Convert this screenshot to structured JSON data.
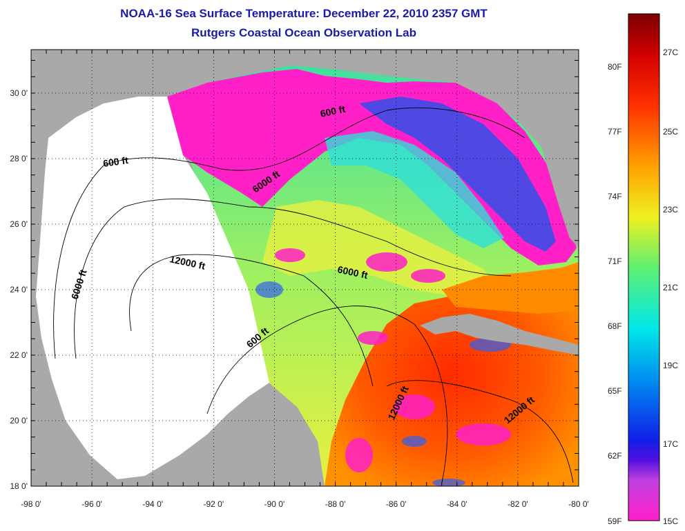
{
  "title": "NOAA-16 Sea Surface Temperature:  December 22, 2010 2357 GMT",
  "subtitle": "Rutgers Coastal Ocean Observation Lab",
  "map": {
    "lon_ticks": [
      "-98 0'",
      "-96 0'",
      "-94 0'",
      "-92 0'",
      "-90 0'",
      "-88 0'",
      "-86 0'",
      "-84 0'",
      "-82 0'",
      "-80 0'"
    ],
    "lat_ticks": [
      "18 0'",
      "20 0'",
      "22 0'",
      "24 0'",
      "26 0'",
      "28 0'",
      "30 0'"
    ],
    "contours": [
      {
        "label": "600 ft"
      },
      {
        "label": "600 ft"
      },
      {
        "label": "6000 ft"
      },
      {
        "label": "6000 ft"
      },
      {
        "label": "6000 ft"
      },
      {
        "label": "12000 ft"
      },
      {
        "label": "600 ft"
      },
      {
        "label": "12000 ft"
      },
      {
        "label": "12000 ft"
      }
    ],
    "colors": {
      "land": "#a9a9a9",
      "no_data": "#ffffff",
      "grid": "#000000"
    }
  },
  "colorbar": {
    "fahrenheit": [
      "80F",
      "77F",
      "74F",
      "71F",
      "68F",
      "65F",
      "62F",
      "59F"
    ],
    "celsius": [
      "27C",
      "25C",
      "23C",
      "21C",
      "19C",
      "17C",
      "15C"
    ]
  }
}
